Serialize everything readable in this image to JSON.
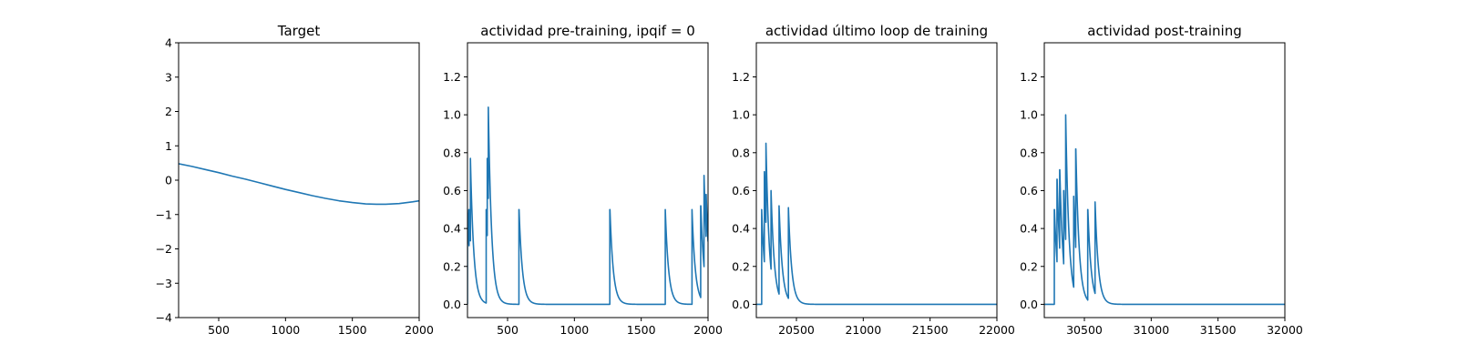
{
  "colors": {
    "line": "#1f77b4",
    "axes": "#000000",
    "background": "#ffffff"
  },
  "chart_data": [
    {
      "type": "line",
      "title": "Target",
      "xlabel": "",
      "ylabel": "",
      "xlim": [
        200,
        2000
      ],
      "ylim": [
        -4,
        4
      ],
      "x_ticks": [
        500,
        1000,
        1500,
        2000
      ],
      "y_ticks": [
        -4,
        -3,
        -2,
        -1,
        0,
        1,
        2,
        3,
        4
      ],
      "x_tick_labels": [
        "500",
        "1000",
        "1500",
        "2000"
      ],
      "y_tick_labels": [
        "−4",
        "−3",
        "−2",
        "−1",
        "0",
        "1",
        "2",
        "3",
        "4"
      ],
      "grid": false,
      "series": [
        {
          "x": [
            200,
            300,
            400,
            500,
            600,
            700,
            800,
            900,
            1000,
            1100,
            1200,
            1300,
            1400,
            1500,
            1600,
            1680,
            1750,
            1850,
            1950,
            2000
          ],
          "y": [
            0.48,
            0.4,
            0.31,
            0.22,
            0.12,
            0.03,
            -0.07,
            -0.17,
            -0.27,
            -0.36,
            -0.45,
            -0.53,
            -0.6,
            -0.65,
            -0.69,
            -0.7,
            -0.7,
            -0.68,
            -0.63,
            -0.6
          ]
        }
      ]
    },
    {
      "type": "line",
      "title": "actividad pre-training, ipqif = 0",
      "xlabel": "",
      "ylabel": "",
      "xlim": [
        200,
        2000
      ],
      "ylim": [
        -0.07,
        1.38
      ],
      "x_ticks": [
        500,
        1000,
        1500,
        2000
      ],
      "y_ticks": [
        0.0,
        0.2,
        0.4,
        0.6,
        0.8,
        1.0,
        1.2
      ],
      "x_tick_labels": [
        "500",
        "1000",
        "1500",
        "2000"
      ],
      "y_tick_labels": [
        "0.0",
        "0.2",
        "0.4",
        "0.6",
        "0.8",
        "1.0",
        "1.2"
      ],
      "grid": false,
      "baseline": 0,
      "decay": 25,
      "spikes": [
        {
          "t": 200,
          "h": 0.5
        },
        {
          "t": 212,
          "h": 0.5
        },
        {
          "t": 222,
          "h": 0.77
        },
        {
          "t": 340,
          "h": 0.5
        },
        {
          "t": 348,
          "h": 0.77
        },
        {
          "t": 356,
          "h": 1.04
        },
        {
          "t": 585,
          "h": 0.5
        },
        {
          "t": 1265,
          "h": 0.5
        },
        {
          "t": 1680,
          "h": 0.5
        },
        {
          "t": 1880,
          "h": 0.5
        },
        {
          "t": 1945,
          "h": 0.52
        },
        {
          "t": 1970,
          "h": 0.68
        },
        {
          "t": 1985,
          "h": 0.58
        }
      ]
    },
    {
      "type": "line",
      "title": "actividad último loop de training",
      "xlabel": "",
      "ylabel": "",
      "xlim": [
        20200,
        22000
      ],
      "ylim": [
        -0.07,
        1.38
      ],
      "x_ticks": [
        20500,
        21000,
        21500,
        22000
      ],
      "y_ticks": [
        0.0,
        0.2,
        0.4,
        0.6,
        0.8,
        1.0,
        1.2
      ],
      "x_tick_labels": [
        "20500",
        "21000",
        "21500",
        "22000"
      ],
      "y_tick_labels": [
        "0.0",
        "0.2",
        "0.4",
        "0.6",
        "0.8",
        "1.0",
        "1.2"
      ],
      "grid": false,
      "baseline": 0,
      "decay": 25,
      "spikes": [
        {
          "t": 20240,
          "h": 0.5
        },
        {
          "t": 20260,
          "h": 0.7
        },
        {
          "t": 20272,
          "h": 0.85
        },
        {
          "t": 20310,
          "h": 0.6
        },
        {
          "t": 20370,
          "h": 0.52
        },
        {
          "t": 20440,
          "h": 0.51
        }
      ]
    },
    {
      "type": "line",
      "title": "actividad post-training",
      "xlabel": "",
      "ylabel": "",
      "xlim": [
        30200,
        32000
      ],
      "ylim": [
        -0.07,
        1.38
      ],
      "x_ticks": [
        30500,
        31000,
        31500,
        32000
      ],
      "y_ticks": [
        0.0,
        0.2,
        0.4,
        0.6,
        0.8,
        1.0,
        1.2
      ],
      "x_tick_labels": [
        "30500",
        "31000",
        "31500",
        "32000"
      ],
      "y_tick_labels": [
        "0.0",
        "0.2",
        "0.4",
        "0.6",
        "0.8",
        "1.0",
        "1.2"
      ],
      "grid": false,
      "baseline": 0,
      "decay": 25,
      "spikes": [
        {
          "t": 30275,
          "h": 0.5
        },
        {
          "t": 30295,
          "h": 0.66
        },
        {
          "t": 30315,
          "h": 0.71
        },
        {
          "t": 30345,
          "h": 0.6
        },
        {
          "t": 30360,
          "h": 1.0
        },
        {
          "t": 30420,
          "h": 0.57
        },
        {
          "t": 30435,
          "h": 0.82
        },
        {
          "t": 30525,
          "h": 0.5
        },
        {
          "t": 30580,
          "h": 0.54
        }
      ]
    }
  ]
}
